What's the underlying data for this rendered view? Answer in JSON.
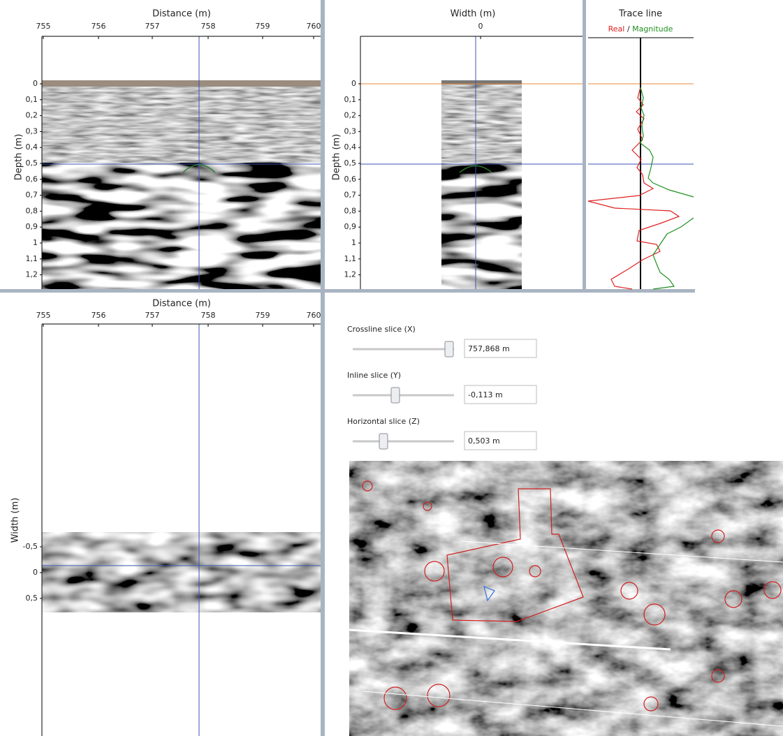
{
  "distance_panel": {
    "x_label": "Distance (m)",
    "x_ticks": [
      "755",
      "756",
      "757",
      "758",
      "759",
      "760"
    ],
    "y_label": "Depth (m)",
    "y_ticks": [
      "0",
      "0,1",
      "0,2",
      "0,3",
      "0,4",
      "0,5",
      "0,6",
      "0,7",
      "0,8",
      "0,9",
      "1",
      "1,1",
      "1,2"
    ]
  },
  "width_panel": {
    "x_label": "Width (m)",
    "x_ticks": [
      "0"
    ],
    "y_label": "Depth (m)",
    "y_ticks": [
      "0",
      "0,1",
      "0,2",
      "0,3",
      "0,4",
      "0,5",
      "0,6",
      "0,7",
      "0,8",
      "0,9",
      "1",
      "1,1",
      "1,2"
    ]
  },
  "trace_panel": {
    "title": "Trace line",
    "legend": [
      "Real",
      "/",
      "Magnitude"
    ]
  },
  "plan_panel": {
    "x_label": "Distance (m)",
    "x_ticks": [
      "755",
      "756",
      "757",
      "758",
      "759",
      "760"
    ],
    "y_label": "Width (m)",
    "y_ticks": [
      "-0,5",
      "0",
      "0,5"
    ]
  },
  "controls": [
    {
      "label": "Crossline slice (X)",
      "value": "757,868 m"
    },
    {
      "label": "Inline slice (Y)",
      "value": "-0,113 m"
    },
    {
      "label": "Horizontal slice (Z)",
      "value": "0,503 m"
    }
  ]
}
